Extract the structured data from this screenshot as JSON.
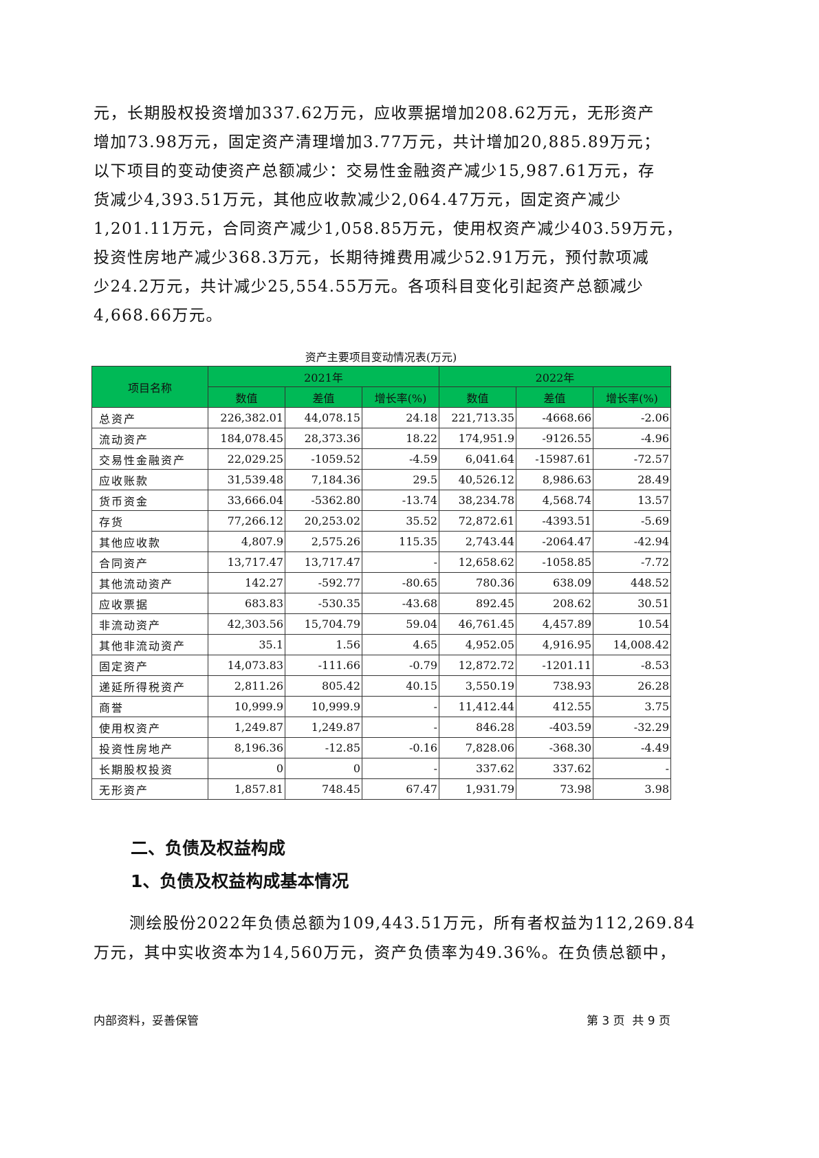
{
  "intro_lines": [
    "元，长期股权投资增加337.62万元，应收票据增加208.62万元，无形资产",
    "增加73.98万元，固定资产清理增加3.77万元，共计增加20,885.89万元；",
    "以下项目的变动使资产总额减少：交易性金融资产减少15,987.61万元，存",
    "货减少4,393.51万元，其他应收款减少2,064.47万元，固定资产减少",
    "1,201.11万元，合同资产减少1,058.85万元，使用权资产减少403.59万元，",
    "投资性房地产减少368.3万元，长期待摊费用减少52.91万元，预付款项减",
    "少24.2万元，共计减少25,554.55万元。各项科目变化引起资产总额减少",
    "4,668.66万元。"
  ],
  "table": {
    "caption": "资产主要项目变动情况表(万元)",
    "header_color": "#00b956",
    "name_header": "项目名称",
    "years": [
      "2021年",
      "2022年"
    ],
    "sub_headers": [
      "数值",
      "差值",
      "增长率(%)",
      "数值",
      "差值",
      "增长率(%)"
    ],
    "rows": [
      [
        "总资产",
        "226,382.01",
        "44,078.15",
        "24.18",
        "221,713.35",
        "-4668.66",
        "-2.06"
      ],
      [
        "流动资产",
        "184,078.45",
        "28,373.36",
        "18.22",
        "174,951.9",
        "-9126.55",
        "-4.96"
      ],
      [
        "交易性金融资产",
        "22,029.25",
        "-1059.52",
        "-4.59",
        "6,041.64",
        "-15987.61",
        "-72.57"
      ],
      [
        "应收账款",
        "31,539.48",
        "7,184.36",
        "29.5",
        "40,526.12",
        "8,986.63",
        "28.49"
      ],
      [
        "货币资金",
        "33,666.04",
        "-5362.80",
        "-13.74",
        "38,234.78",
        "4,568.74",
        "13.57"
      ],
      [
        "存货",
        "77,266.12",
        "20,253.02",
        "35.52",
        "72,872.61",
        "-4393.51",
        "-5.69"
      ],
      [
        "其他应收款",
        "4,807.9",
        "2,575.26",
        "115.35",
        "2,743.44",
        "-2064.47",
        "-42.94"
      ],
      [
        "合同资产",
        "13,717.47",
        "13,717.47",
        "-",
        "12,658.62",
        "-1058.85",
        "-7.72"
      ],
      [
        "其他流动资产",
        "142.27",
        "-592.77",
        "-80.65",
        "780.36",
        "638.09",
        "448.52"
      ],
      [
        "应收票据",
        "683.83",
        "-530.35",
        "-43.68",
        "892.45",
        "208.62",
        "30.51"
      ],
      [
        "非流动资产",
        "42,303.56",
        "15,704.79",
        "59.04",
        "46,761.45",
        "4,457.89",
        "10.54"
      ],
      [
        "其他非流动资产",
        "35.1",
        "1.56",
        "4.65",
        "4,952.05",
        "4,916.95",
        "14,008.42"
      ],
      [
        "固定资产",
        "14,073.83",
        "-111.66",
        "-0.79",
        "12,872.72",
        "-1201.11",
        "-8.53"
      ],
      [
        "递延所得税资产",
        "2,811.26",
        "805.42",
        "40.15",
        "3,550.19",
        "738.93",
        "26.28"
      ],
      [
        "商誉",
        "10,999.9",
        "10,999.9",
        "-",
        "11,412.44",
        "412.55",
        "3.75"
      ],
      [
        "使用权资产",
        "1,249.87",
        "1,249.87",
        "-",
        "846.28",
        "-403.59",
        "-32.29"
      ],
      [
        "投资性房地产",
        "8,196.36",
        "-12.85",
        "-0.16",
        "7,828.06",
        "-368.30",
        "-4.49"
      ],
      [
        "长期股权投资",
        "0",
        "0",
        "-",
        "337.62",
        "337.62",
        "-"
      ],
      [
        "无形资产",
        "1,857.81",
        "748.45",
        "67.47",
        "1,931.79",
        "73.98",
        "3.98"
      ]
    ]
  },
  "heading_1": "二、负债及权益构成",
  "heading_2": "1、负债及权益构成基本情况",
  "body_lines": [
    "测绘股份2022年负债总额为109,443.51万元，所有者权益为112,269.84",
    "万元，其中实收资本为14,560万元，资产负债率为49.36%。在负债总额中，"
  ],
  "footer": {
    "left": "内部资料，妥善保管",
    "right": "第 3 页  共 9 页"
  }
}
